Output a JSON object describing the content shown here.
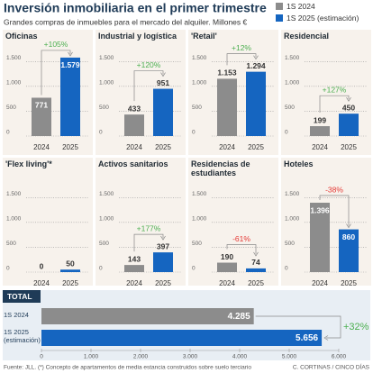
{
  "header": {
    "title": "Inversión inmobiliaria en el primer trimestre",
    "subtitle": "Grandes compras de inmuebles para el mercado del alquiler. Millones €"
  },
  "legend": [
    {
      "name": "1S 2024",
      "color": "#8c8c8c"
    },
    {
      "name": "1S 2025 (estimación)",
      "color": "#1565c0"
    }
  ],
  "chart_data": [
    {
      "type": "bar",
      "title": "Oficinas",
      "categories": [
        "2024",
        "2025"
      ],
      "values": [
        771,
        1579
      ],
      "value_labels": [
        "771",
        "1.579"
      ],
      "labels_inside": [
        true,
        true
      ],
      "colors": [
        "#8c8c8c",
        "#1565c0"
      ],
      "ylim": [
        0,
        1650
      ],
      "yticks": [
        0,
        500,
        {
          "value": 1000,
          "label": "1.000"
        },
        {
          "value": 1500,
          "label": "1.500"
        }
      ],
      "annotation": "+105%",
      "annotation_color": "#4caf50"
    },
    {
      "type": "bar",
      "title": "Industrial y logística",
      "categories": [
        "2024",
        "2025"
      ],
      "values": [
        433,
        951
      ],
      "labels_inside": [
        false,
        false
      ],
      "colors": [
        "#8c8c8c",
        "#1565c0"
      ],
      "ylim": [
        0,
        1650
      ],
      "yticks": [
        0,
        500,
        {
          "value": 1000,
          "label": "1.000"
        },
        {
          "value": 1500,
          "label": "1.500"
        }
      ],
      "annotation": "+120%",
      "annotation_color": "#4caf50"
    },
    {
      "type": "bar",
      "title": "'Retail'",
      "categories": [
        "2024",
        "2025"
      ],
      "values": [
        1153,
        1294
      ],
      "value_labels": [
        "1.153",
        "1.294"
      ],
      "labels_inside": [
        false,
        false
      ],
      "colors": [
        "#8c8c8c",
        "#1565c0"
      ],
      "ylim": [
        0,
        1650
      ],
      "yticks": [
        0,
        500,
        {
          "value": 1000,
          "label": "1.000"
        },
        {
          "value": 1500,
          "label": "1.500"
        }
      ],
      "annotation": "+12%",
      "annotation_color": "#4caf50"
    },
    {
      "type": "bar",
      "title": "Residencial",
      "categories": [
        "2024",
        "2025"
      ],
      "values": [
        199,
        450
      ],
      "labels_inside": [
        false,
        false
      ],
      "colors": [
        "#8c8c8c",
        "#1565c0"
      ],
      "ylim": [
        0,
        1650
      ],
      "yticks": [
        0,
        500,
        {
          "value": 1000,
          "label": "1.000"
        },
        {
          "value": 1500,
          "label": "1.500"
        }
      ],
      "annotation": "+127%",
      "annotation_color": "#4caf50"
    },
    {
      "type": "bar",
      "title": "'Flex living'*",
      "categories": [
        "2024",
        "2025"
      ],
      "values": [
        0,
        50
      ],
      "labels_inside": [
        false,
        false
      ],
      "colors": [
        "#8c8c8c",
        "#1565c0"
      ],
      "ylim": [
        0,
        1650
      ],
      "yticks": [
        0,
        500,
        {
          "value": 1000,
          "label": "1.000"
        },
        {
          "value": 1500,
          "label": "1.500"
        }
      ]
    },
    {
      "type": "bar",
      "title": "Activos sanitarios",
      "categories": [
        "2024",
        "2025"
      ],
      "values": [
        143,
        397
      ],
      "labels_inside": [
        false,
        false
      ],
      "colors": [
        "#8c8c8c",
        "#1565c0"
      ],
      "ylim": [
        0,
        1650
      ],
      "yticks": [
        0,
        500,
        {
          "value": 1000,
          "label": "1.000"
        },
        {
          "value": 1500,
          "label": "1.500"
        }
      ],
      "annotation": "+177%",
      "annotation_color": "#4caf50"
    },
    {
      "type": "bar",
      "title": "Residencias de estudiantes",
      "categories": [
        "2024",
        "2025"
      ],
      "values": [
        190,
        74
      ],
      "labels_inside": [
        false,
        false
      ],
      "colors": [
        "#8c8c8c",
        "#1565c0"
      ],
      "ylim": [
        0,
        1650
      ],
      "yticks": [
        0,
        500,
        {
          "value": 1000,
          "label": "1.000"
        },
        {
          "value": 1500,
          "label": "1.500"
        }
      ],
      "annotation": "-61%",
      "annotation_color": "#e53935"
    },
    {
      "type": "bar",
      "title": "Hoteles",
      "categories": [
        "2024",
        "2025"
      ],
      "values": [
        1396,
        860
      ],
      "value_labels": [
        "1.396",
        "860"
      ],
      "labels_inside": [
        true,
        true
      ],
      "colors": [
        "#8c8c8c",
        "#1565c0"
      ],
      "ylim": [
        0,
        1650
      ],
      "yticks": [
        0,
        500,
        {
          "value": 1000,
          "label": "1.000"
        },
        {
          "value": 1500,
          "label": "1.500"
        }
      ],
      "annotation": "-38%",
      "annotation_color": "#e53935"
    },
    {
      "type": "hbar",
      "title": "TOTAL",
      "categories": [
        "1S 2024",
        "1S 2025 (estimación)"
      ],
      "values": [
        4285,
        5656
      ],
      "value_labels": [
        "4.285",
        "5.656"
      ],
      "colors": [
        "#8c8c8c",
        "#1565c0"
      ],
      "xlim": [
        0,
        6000
      ],
      "xticks": [
        0,
        {
          "value": 1000,
          "label": "1.000"
        },
        {
          "value": 2000,
          "label": "2.000"
        },
        {
          "value": 3000,
          "label": "3.000"
        },
        {
          "value": 4000,
          "label": "4.000"
        },
        {
          "value": 5000,
          "label": "5.000"
        },
        {
          "value": 6000,
          "label": "6.000"
        }
      ],
      "annotation": "+32%",
      "annotation_color": "#4caf50"
    }
  ],
  "footer": {
    "source": "Fuente: JLL. (*) Concepto de apartamentos de media estancia construidos sobre suelo terciario",
    "credit": "C. CORTINAS / CINCO DÍAS"
  }
}
